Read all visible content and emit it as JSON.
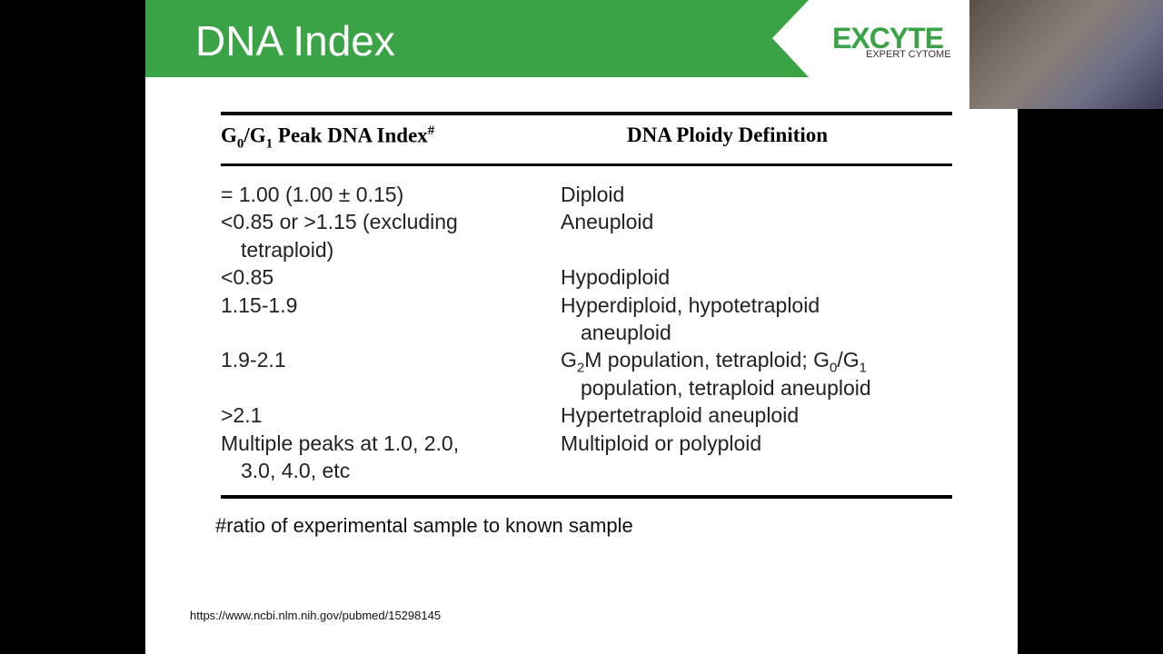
{
  "slide": {
    "title": "DNA Index",
    "logo": {
      "name": "EXCYTE",
      "tagline": "EXPERT CYTOME"
    },
    "table": {
      "headers": [
        [
          "G",
          "0",
          "/G",
          "1",
          " Peak DNA Index",
          "#"
        ],
        "DNA Ploidy Definition"
      ],
      "rows": [
        [
          [
            "= 1.00 (1.00 ± 0.15)"
          ],
          [
            "Diploid"
          ]
        ],
        [
          [
            "<0.85 or >1.15 (excluding",
            "tetraploid)"
          ],
          [
            "Aneuploid"
          ]
        ],
        [
          [
            "<0.85"
          ],
          [
            "Hypodiploid"
          ]
        ],
        [
          [
            "1.15-1.9"
          ],
          [
            "Hyperdiploid, hypotetraploid",
            "aneuploid"
          ]
        ],
        [
          [
            "1.9-2.1"
          ],
          [
            [
              "G",
              "2",
              "M population, tetraploid; G",
              "0",
              "/G",
              "1"
            ],
            "population, tetraploid aneuploid"
          ]
        ],
        [
          [
            ">2.1"
          ],
          [
            "Hypertetraploid aneuploid"
          ]
        ],
        [
          [
            "Multiple peaks at 1.0, 2.0,",
            "3.0, 4.0, etc"
          ],
          [
            "Multiploid or polyploid"
          ]
        ]
      ]
    },
    "footnote": "#ratio of experimental sample to known sample",
    "source": "https://www.ncbi.nlm.nih.gov/pubmed/15298145"
  }
}
